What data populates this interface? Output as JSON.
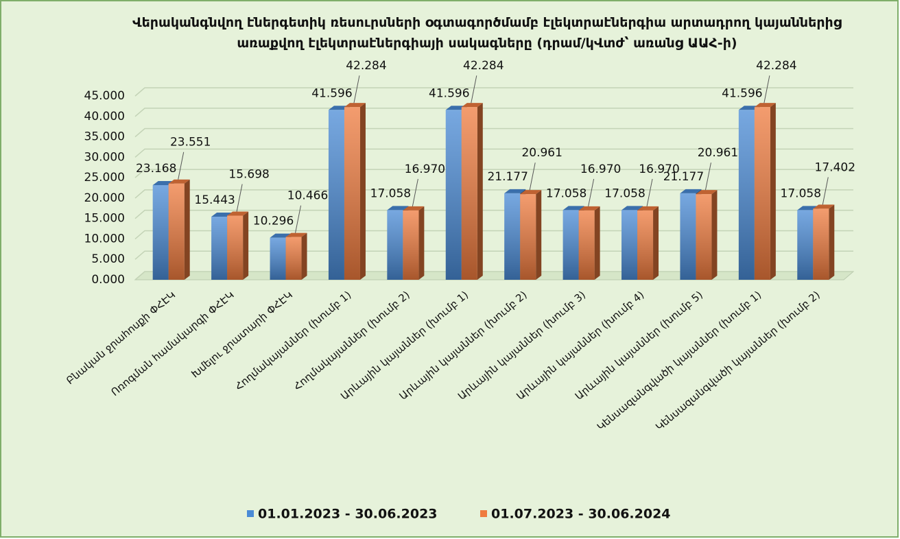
{
  "chart_data": {
    "type": "bar3d",
    "title": "Վերականգնվող էներգետիկ ռեսուրսների օգտագործմամբ էլեկտրաէներգիա արտադրող կայաններից առաքվող էլեկտրաէներգիայի սակագները (դրամ/կՎտժ՝ առանց ԱԱՀ-ի)",
    "categories": [
      "Բնական ջրահոսքի ՓՀԷԿ",
      "Ոռոգման համակարգի ՓՀԷԿ",
      "Խմելու ջրատարի ՓՀԷԿ",
      "Հողմակայաններ (խումբ 1)",
      "Հողմակայաններ (խումբ 2)",
      "Արևային կայաններ (խումբ 1)",
      "Արևային կայաններ (խումբ 2)",
      "Արևային կայաններ (խումբ 3)",
      "Արևային կայաններ (խումբ 4)",
      "Արևային կայաններ (խումբ 5)",
      "Կենսազանգվածի կայաններ (խումբ 1)",
      "Կենսազանգվածի կայաններ (խումբ 2)"
    ],
    "series": [
      {
        "name": "01.01.2023 - 30.06.2023",
        "color": "#4a8bd6",
        "values": [
          23.168,
          15.443,
          10.296,
          41.596,
          17.058,
          41.596,
          21.177,
          17.058,
          17.058,
          21.177,
          41.596,
          17.058
        ],
        "value_labels": [
          "23.168",
          "15.443",
          "10.296",
          "41.596",
          "17.058",
          "41.596",
          "21.177",
          "17.058",
          "17.058",
          "21.177",
          "41.596",
          "17.058"
        ]
      },
      {
        "name": "01.07.2023 - 30.06.2024",
        "color": "#ef7b3e",
        "values": [
          23.551,
          15.698,
          10.466,
          42.284,
          16.97,
          42.284,
          20.961,
          16.97,
          16.97,
          20.961,
          42.284,
          17.402
        ],
        "value_labels": [
          "23.551",
          "15.698",
          "10.466",
          "42.284",
          "16.970",
          "42.284",
          "20.961",
          "16.970",
          "16.970",
          "20.961",
          "42.284",
          "17.402"
        ]
      }
    ],
    "ylim": [
      0,
      45
    ],
    "yticks": [
      {
        "value": 0,
        "label": "0.000"
      },
      {
        "value": 5,
        "label": "5.000"
      },
      {
        "value": 10,
        "label": "10.000"
      },
      {
        "value": 15,
        "label": "15.000"
      },
      {
        "value": 20,
        "label": "20.000"
      },
      {
        "value": 25,
        "label": "25.000"
      },
      {
        "value": 30,
        "label": "30.000"
      },
      {
        "value": 35,
        "label": "35.000"
      },
      {
        "value": 40,
        "label": "40.000"
      },
      {
        "value": 45,
        "label": "45.000"
      }
    ],
    "grid": true,
    "legend": "bottom"
  }
}
